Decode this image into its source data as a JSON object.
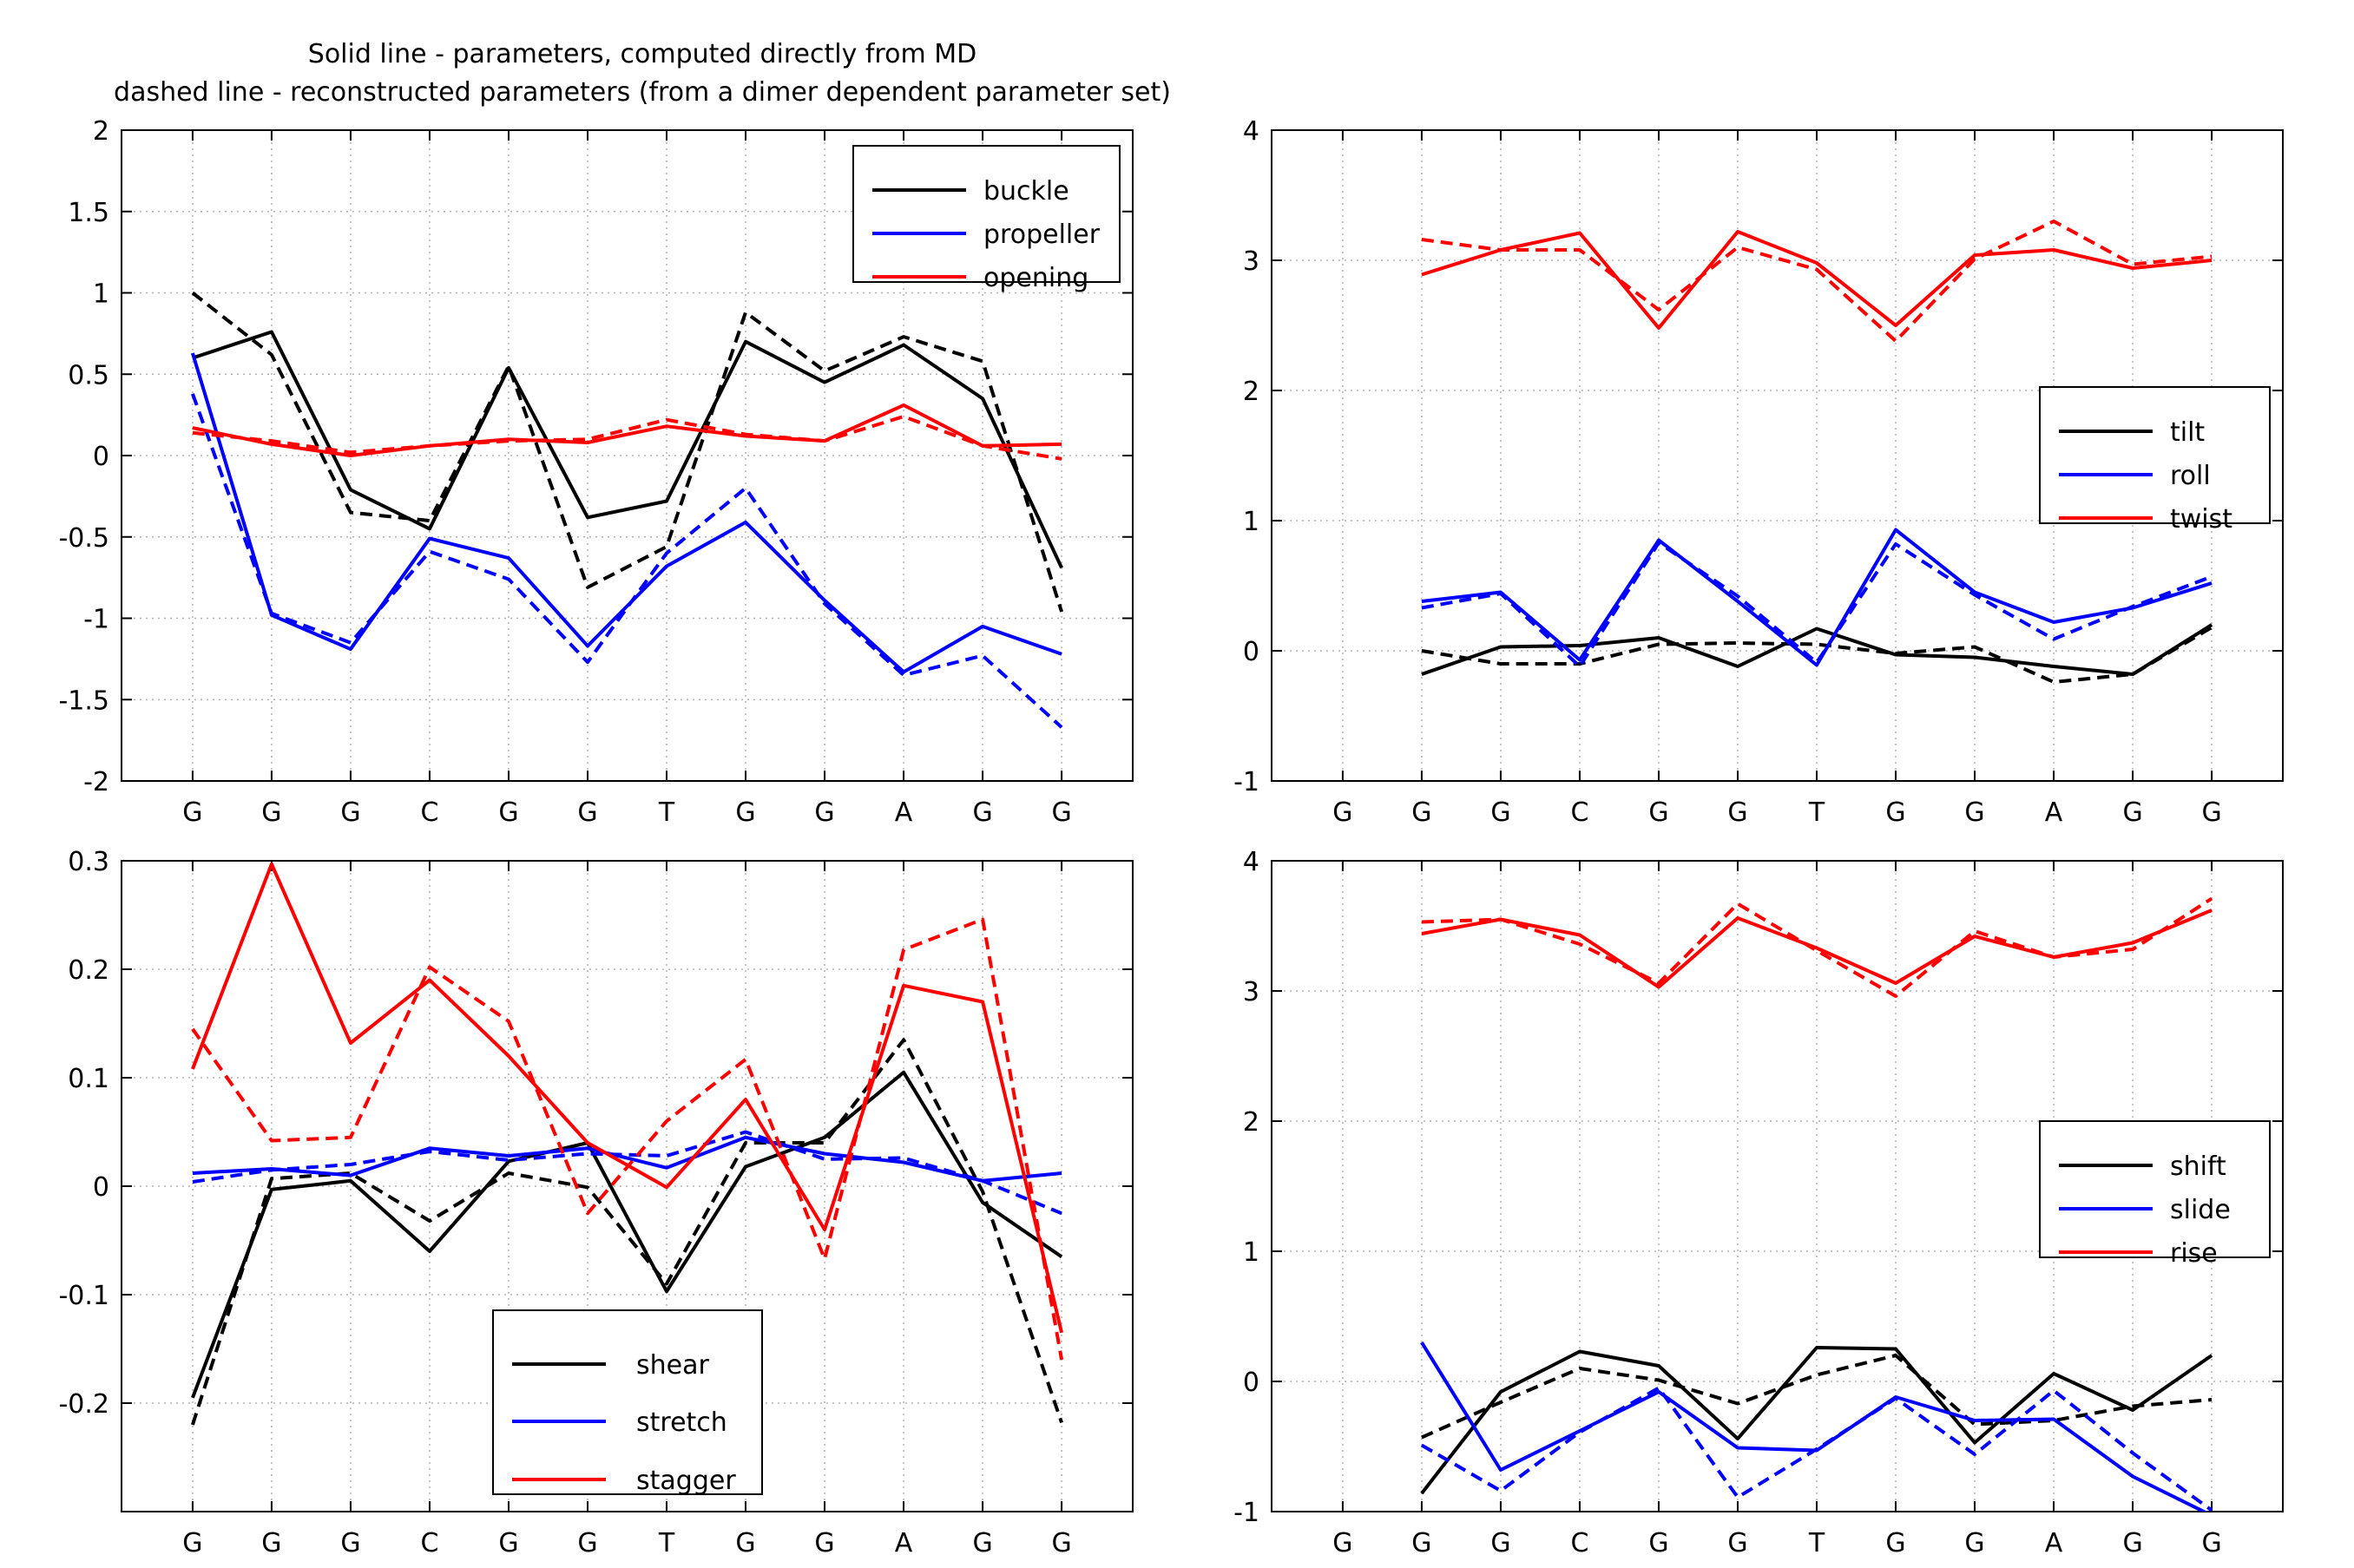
{
  "figure_title": [
    "Solid line - parameters, computed directly from MD",
    "dashed line - reconstructed parameters (from a dimer dependent parameter set)"
  ],
  "line_style_note": {
    "solid": "computed directly from MD",
    "dashed": "reconstructed parameters"
  },
  "chart_data": [
    {
      "type": "line",
      "categories": [
        "G",
        "G",
        "G",
        "C",
        "G",
        "G",
        "T",
        "G",
        "G",
        "A",
        "G",
        "G"
      ],
      "ylim": [
        -2,
        2
      ],
      "yticks": [
        -2,
        -1.5,
        -1,
        -0.5,
        0,
        0.5,
        1,
        1.5,
        2
      ],
      "ytick_labels": [
        "-2",
        "-1.5",
        "-1",
        "-0.5",
        "0",
        "0.5",
        "1",
        "1.5",
        "2"
      ],
      "x_start_index": 0,
      "grid": true,
      "legend_placement": "top-right",
      "series": [
        {
          "name": "buckle",
          "color": "#000000",
          "solid": [
            0.6,
            0.76,
            -0.21,
            -0.45,
            0.54,
            -0.38,
            -0.28,
            0.7,
            0.45,
            0.68,
            0.35,
            -0.69
          ],
          "dashed": [
            1.0,
            0.62,
            -0.35,
            -0.4,
            0.55,
            -0.81,
            -0.56,
            0.88,
            0.52,
            0.73,
            0.58,
            -0.96
          ]
        },
        {
          "name": "propeller",
          "color": "#0000ff",
          "solid": [
            0.63,
            -0.98,
            -1.19,
            -0.51,
            -0.63,
            -1.17,
            -0.68,
            -0.41,
            -0.89,
            -1.33,
            -1.05,
            -1.22
          ],
          "dashed": [
            0.38,
            -0.97,
            -1.15,
            -0.59,
            -0.76,
            -1.27,
            -0.6,
            -0.2,
            -0.91,
            -1.35,
            -1.23,
            -1.67
          ]
        },
        {
          "name": "opening",
          "color": "#ff0000",
          "solid": [
            0.17,
            0.07,
            0.0,
            0.06,
            0.1,
            0.08,
            0.18,
            0.12,
            0.09,
            0.31,
            0.06,
            0.07
          ],
          "dashed": [
            0.14,
            0.09,
            0.02,
            0.06,
            0.09,
            0.1,
            0.22,
            0.13,
            0.09,
            0.24,
            0.06,
            -0.02
          ]
        }
      ]
    },
    {
      "type": "line",
      "categories": [
        "G",
        "G",
        "G",
        "C",
        "G",
        "G",
        "T",
        "G",
        "G",
        "A",
        "G",
        "G"
      ],
      "ylim": [
        -1,
        4
      ],
      "yticks": [
        -1,
        0,
        1,
        2,
        3,
        4
      ],
      "ytick_labels": [
        "-1",
        "0",
        "1",
        "2",
        "3",
        "4"
      ],
      "x_start_index": 1,
      "grid": true,
      "legend_placement": "center-right",
      "series": [
        {
          "name": "tilt",
          "color": "#000000",
          "solid": [
            -0.18,
            0.03,
            0.04,
            0.1,
            -0.12,
            0.17,
            -0.03,
            -0.05,
            -0.12,
            -0.18,
            0.2
          ],
          "dashed": [
            0.0,
            -0.1,
            -0.1,
            0.05,
            0.06,
            0.05,
            -0.02,
            0.03,
            -0.24,
            -0.18,
            0.18
          ]
        },
        {
          "name": "roll",
          "color": "#0000ff",
          "solid": [
            0.38,
            0.45,
            -0.07,
            0.85,
            0.38,
            -0.11,
            0.93,
            0.45,
            0.22,
            0.33,
            0.52
          ],
          "dashed": [
            0.33,
            0.44,
            -0.12,
            0.83,
            0.42,
            -0.09,
            0.82,
            0.43,
            0.09,
            0.34,
            0.57
          ]
        },
        {
          "name": "twist",
          "color": "#ff0000",
          "solid": [
            2.89,
            3.08,
            3.21,
            2.48,
            3.22,
            2.98,
            2.5,
            3.04,
            3.08,
            2.94,
            3.0
          ],
          "dashed": [
            3.16,
            3.08,
            3.08,
            2.62,
            3.1,
            2.93,
            2.38,
            3.01,
            3.3,
            2.97,
            3.03
          ]
        }
      ]
    },
    {
      "type": "line",
      "categories": [
        "G",
        "G",
        "G",
        "C",
        "G",
        "G",
        "T",
        "G",
        "G",
        "A",
        "G",
        "G"
      ],
      "ylim": [
        -0.3,
        0.3
      ],
      "yticks": [
        -0.2,
        -0.1,
        0,
        0.1,
        0.2,
        0.3
      ],
      "ytick_labels": [
        "-0.2",
        "-0.1",
        "0",
        "0.1",
        "0.2",
        "0.3"
      ],
      "x_start_index": 0,
      "grid": true,
      "legend_placement": "bottom-center",
      "series": [
        {
          "name": "shear",
          "color": "#000000",
          "solid": [
            -0.195,
            -0.003,
            0.005,
            -0.06,
            0.023,
            0.04,
            -0.097,
            0.018,
            0.045,
            0.105,
            -0.015,
            -0.065
          ],
          "dashed": [
            -0.22,
            0.007,
            0.012,
            -0.032,
            0.012,
            -0.001,
            -0.09,
            0.04,
            0.04,
            0.135,
            -0.005,
            -0.218
          ]
        },
        {
          "name": "stretch",
          "color": "#0000ff",
          "solid": [
            0.012,
            0.016,
            0.01,
            0.035,
            0.028,
            0.035,
            0.017,
            0.045,
            0.03,
            0.022,
            0.005,
            0.012
          ],
          "dashed": [
            0.004,
            0.015,
            0.02,
            0.032,
            0.024,
            0.03,
            0.028,
            0.05,
            0.025,
            0.026,
            0.005,
            -0.025
          ]
        },
        {
          "name": "stagger",
          "color": "#ff0000",
          "solid": [
            0.108,
            0.297,
            0.132,
            0.19,
            0.12,
            0.04,
            -0.001,
            0.08,
            -0.04,
            0.185,
            0.17,
            -0.135
          ],
          "dashed": [
            0.145,
            0.042,
            0.045,
            0.202,
            0.152,
            -0.025,
            0.06,
            0.117,
            -0.067,
            0.218,
            0.246,
            -0.16
          ]
        }
      ]
    },
    {
      "type": "line",
      "categories": [
        "G",
        "G",
        "G",
        "C",
        "G",
        "G",
        "T",
        "G",
        "G",
        "A",
        "G",
        "G"
      ],
      "ylim": [
        -1,
        4
      ],
      "yticks": [
        -1,
        0,
        1,
        2,
        3,
        4
      ],
      "ytick_labels": [
        "-1",
        "0",
        "1",
        "2",
        "3",
        "4"
      ],
      "x_start_index": 1,
      "grid": true,
      "legend_placement": "center-right",
      "series": [
        {
          "name": "shift",
          "color": "#000000",
          "solid": [
            -0.86,
            -0.08,
            0.23,
            0.12,
            -0.44,
            0.26,
            0.25,
            -0.47,
            0.06,
            -0.22,
            0.2
          ],
          "dashed": [
            -0.43,
            -0.16,
            0.1,
            0.01,
            -0.17,
            0.05,
            0.2,
            -0.33,
            -0.3,
            -0.19,
            -0.14
          ]
        },
        {
          "name": "slide",
          "color": "#0000ff",
          "solid": [
            0.3,
            -0.68,
            -0.38,
            -0.08,
            -0.51,
            -0.53,
            -0.12,
            -0.3,
            -0.29,
            -0.73,
            -1.03
          ],
          "dashed": [
            -0.49,
            -0.84,
            -0.39,
            -0.05,
            -0.89,
            -0.52,
            -0.13,
            -0.56,
            -0.07,
            -0.55,
            -0.99
          ]
        },
        {
          "name": "rise",
          "color": "#ff0000",
          "solid": [
            3.44,
            3.55,
            3.43,
            3.03,
            3.56,
            3.33,
            3.06,
            3.42,
            3.26,
            3.37,
            3.62
          ],
          "dashed": [
            3.53,
            3.55,
            3.36,
            3.06,
            3.67,
            3.31,
            2.96,
            3.46,
            3.26,
            3.32,
            3.71
          ]
        }
      ]
    }
  ]
}
